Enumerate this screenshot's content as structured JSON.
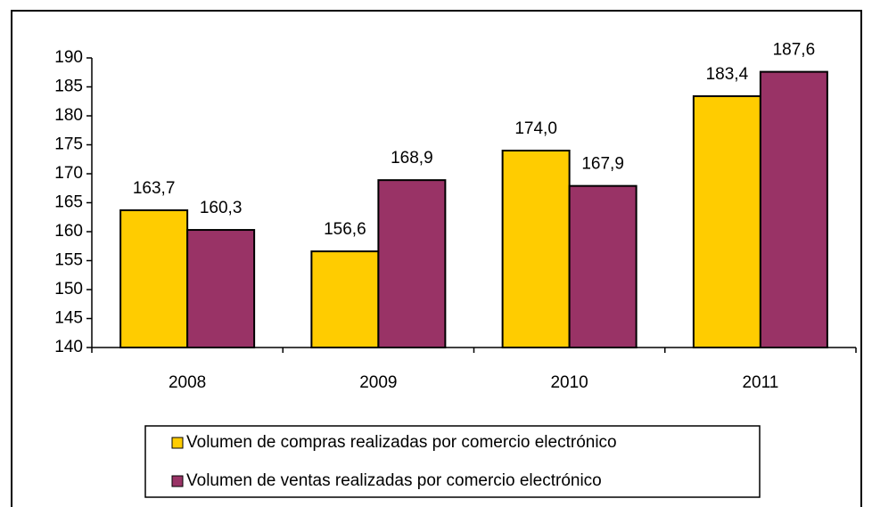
{
  "chart_data": {
    "type": "bar",
    "categories": [
      "2008",
      "2009",
      "2010",
      "2011"
    ],
    "series": [
      {
        "name": "Volumen de compras realizadas por comercio electrónico",
        "color": "#ffcc00",
        "values": [
          163.7,
          156.6,
          174.0,
          183.4
        ],
        "value_labels": [
          "163,7",
          "156,6",
          "174,0",
          "183,4"
        ]
      },
      {
        "name": "Volumen de ventas realizadas por comercio electrónico",
        "color": "#993366",
        "values": [
          160.3,
          168.9,
          167.9,
          187.6
        ],
        "value_labels": [
          "160,3",
          "168,9",
          "167,9",
          "187,6"
        ]
      }
    ],
    "ylim": [
      140,
      190
    ],
    "yticks": [
      140,
      145,
      150,
      155,
      160,
      165,
      170,
      175,
      180,
      185,
      190
    ],
    "grid": false,
    "legend": "bottom"
  }
}
